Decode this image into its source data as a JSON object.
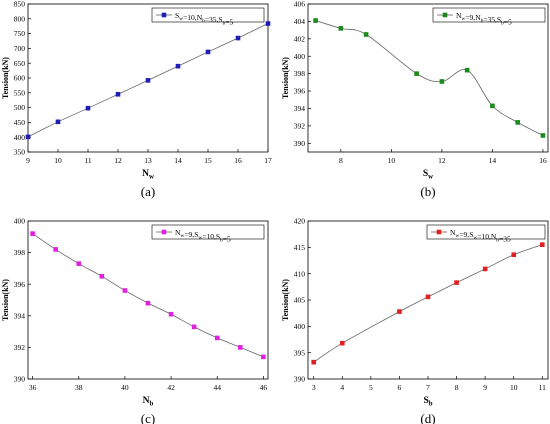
{
  "chart_data": [
    {
      "type": "line",
      "panel_label": "(a)",
      "xlabel": "Nw",
      "ylabel": "Tension(kN)",
      "xlim": [
        9,
        17
      ],
      "ylim": [
        350,
        850
      ],
      "xticks": [
        9,
        10,
        11,
        12,
        13,
        14,
        15,
        16,
        17
      ],
      "yticks": [
        350,
        400,
        450,
        500,
        550,
        600,
        650,
        700,
        750,
        800,
        850
      ],
      "legend_position": "top-right",
      "series": [
        {
          "name": "Sw=10,Nb=35,Sb=5",
          "color": "#1f1fb4",
          "marker": "square",
          "x": [
            9,
            10,
            11,
            12,
            13,
            14,
            15,
            16,
            17
          ],
          "values": [
            401,
            452,
            498,
            545,
            592,
            640,
            688,
            735,
            784
          ]
        }
      ]
    },
    {
      "type": "line",
      "panel_label": "(b)",
      "xlabel": "Sw",
      "ylabel": "Tension(kN)",
      "xlim": [
        6.7,
        16.2
      ],
      "ylim": [
        389,
        406
      ],
      "xticks": [
        8,
        10,
        12,
        14,
        16
      ],
      "yticks": [
        390,
        392,
        394,
        396,
        398,
        400,
        402,
        404,
        406
      ],
      "legend_position": "top-right",
      "series": [
        {
          "name": "Nw=9,Nb=35,Sb=5",
          "color": "#1a8a1a",
          "marker": "square",
          "x": [
            7,
            8,
            9,
            11,
            12,
            13,
            14,
            15,
            16
          ],
          "values": [
            404.1,
            403.2,
            402.5,
            398.0,
            397.1,
            398.4,
            394.3,
            392.4,
            390.9
          ]
        }
      ]
    },
    {
      "type": "line",
      "panel_label": "(c)",
      "xlabel": "Nb",
      "ylabel": "Tension(kN)",
      "xlim": [
        35.8,
        46.2
      ],
      "ylim": [
        390,
        400
      ],
      "xticks": [
        36,
        38,
        40,
        42,
        44,
        46
      ],
      "yticks": [
        390,
        392,
        394,
        396,
        398,
        400
      ],
      "legend_position": "top-right",
      "series": [
        {
          "name": "Nw=9,Sw=10,Sb=5",
          "color": "#e020e0",
          "marker": "square",
          "x": [
            36,
            37,
            38,
            39,
            40,
            41,
            42,
            43,
            44,
            45,
            46
          ],
          "values": [
            399.2,
            398.2,
            397.3,
            396.5,
            395.6,
            394.8,
            394.1,
            393.3,
            392.6,
            392.0,
            391.4
          ]
        }
      ]
    },
    {
      "type": "line",
      "panel_label": "(d)",
      "xlabel": "Sb",
      "ylabel": "Tension(kN)",
      "xlim": [
        2.8,
        11.2
      ],
      "ylim": [
        390,
        420
      ],
      "xticks": [
        3,
        4,
        5,
        6,
        7,
        8,
        9,
        10,
        11
      ],
      "yticks": [
        390,
        395,
        400,
        405,
        410,
        415,
        420
      ],
      "legend_position": "top-right",
      "series": [
        {
          "name": "Nw=9,Sw=10,Nb=35",
          "color": "#e02020",
          "marker": "square",
          "x": [
            3,
            4,
            6,
            7,
            8,
            9,
            10,
            11
          ],
          "values": [
            393.2,
            396.8,
            402.8,
            405.6,
            408.3,
            410.9,
            413.6,
            415.5
          ]
        }
      ]
    }
  ]
}
